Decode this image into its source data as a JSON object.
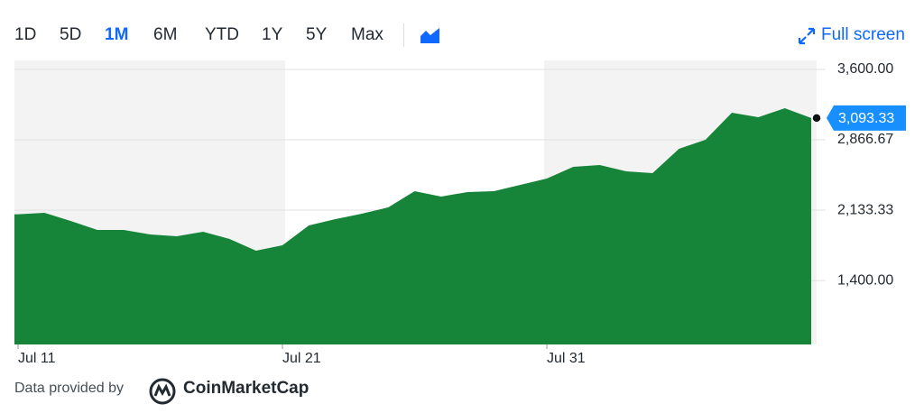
{
  "toolbar": {
    "ranges": [
      "1D",
      "5D",
      "1M",
      "6M",
      "YTD",
      "1Y",
      "5Y",
      "Max"
    ],
    "selected": 2,
    "fullscreen": "Full screen"
  },
  "chart_data": {
    "type": "area",
    "categories": [
      "Jul 11",
      null,
      null,
      null,
      null,
      null,
      null,
      null,
      null,
      null,
      "Jul 21",
      null,
      null,
      null,
      null,
      null,
      null,
      null,
      null,
      null,
      "Jul 31",
      null,
      null,
      null,
      null,
      null,
      null,
      null,
      null,
      null,
      null
    ],
    "values": [
      2090,
      2105,
      2020,
      1927,
      1927,
      1880,
      1861,
      1908,
      1833,
      1711,
      1767,
      1974,
      2040,
      2096,
      2162,
      2331,
      2275,
      2322,
      2331,
      2397,
      2463,
      2585,
      2604,
      2538,
      2519,
      2773,
      2867,
      3149,
      3102,
      3196,
      3093.33
    ],
    "last_value_label": "3,093.33",
    "color": "#178539",
    "ylim": [
      733.33,
      3694
    ],
    "yticks": [
      {
        "value": 1400,
        "label": "1,400.00"
      },
      {
        "value": 2133.33,
        "label": "2,133.33"
      },
      {
        "value": 2866.67,
        "label": "2,866.67"
      },
      {
        "value": 3600,
        "label": "3,600.00"
      }
    ],
    "grid": true
  },
  "footer": {
    "provided_by": "Data provided by",
    "provider": "CoinMarketCap"
  }
}
